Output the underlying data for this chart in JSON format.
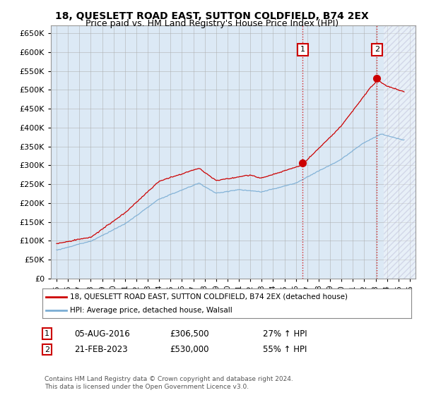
{
  "title": "18, QUESLETT ROAD EAST, SUTTON COLDFIELD, B74 2EX",
  "subtitle": "Price paid vs. HM Land Registry's House Price Index (HPI)",
  "ylim": [
    0,
    670000
  ],
  "yticks": [
    0,
    50000,
    100000,
    150000,
    200000,
    250000,
    300000,
    350000,
    400000,
    450000,
    500000,
    550000,
    600000,
    650000
  ],
  "xlim_start": 1994.5,
  "xlim_end": 2026.5,
  "sale1_year": 2016.59,
  "sale1_price": 306500,
  "sale1_label": "1",
  "sale1_date": "05-AUG-2016",
  "sale1_pct": "27% ↑ HPI",
  "sale2_year": 2023.12,
  "sale2_price": 530000,
  "sale2_label": "2",
  "sale2_date": "21-FEB-2023",
  "sale2_pct": "55% ↑ HPI",
  "property_label": "18, QUESLETT ROAD EAST, SUTTON COLDFIELD, B74 2EX (detached house)",
  "hpi_label": "HPI: Average price, detached house, Walsall",
  "property_color": "#cc0000",
  "hpi_color": "#7aadd4",
  "plot_bg_color": "#dce9f5",
  "background_color": "#ffffff",
  "grid_color": "#aaaaaa",
  "annotation_color": "#cc0000",
  "hatch_start": 2023.7,
  "footnote": "Contains HM Land Registry data © Crown copyright and database right 2024.\nThis data is licensed under the Open Government Licence v3.0.",
  "title_fontsize": 10,
  "subtitle_fontsize": 9
}
